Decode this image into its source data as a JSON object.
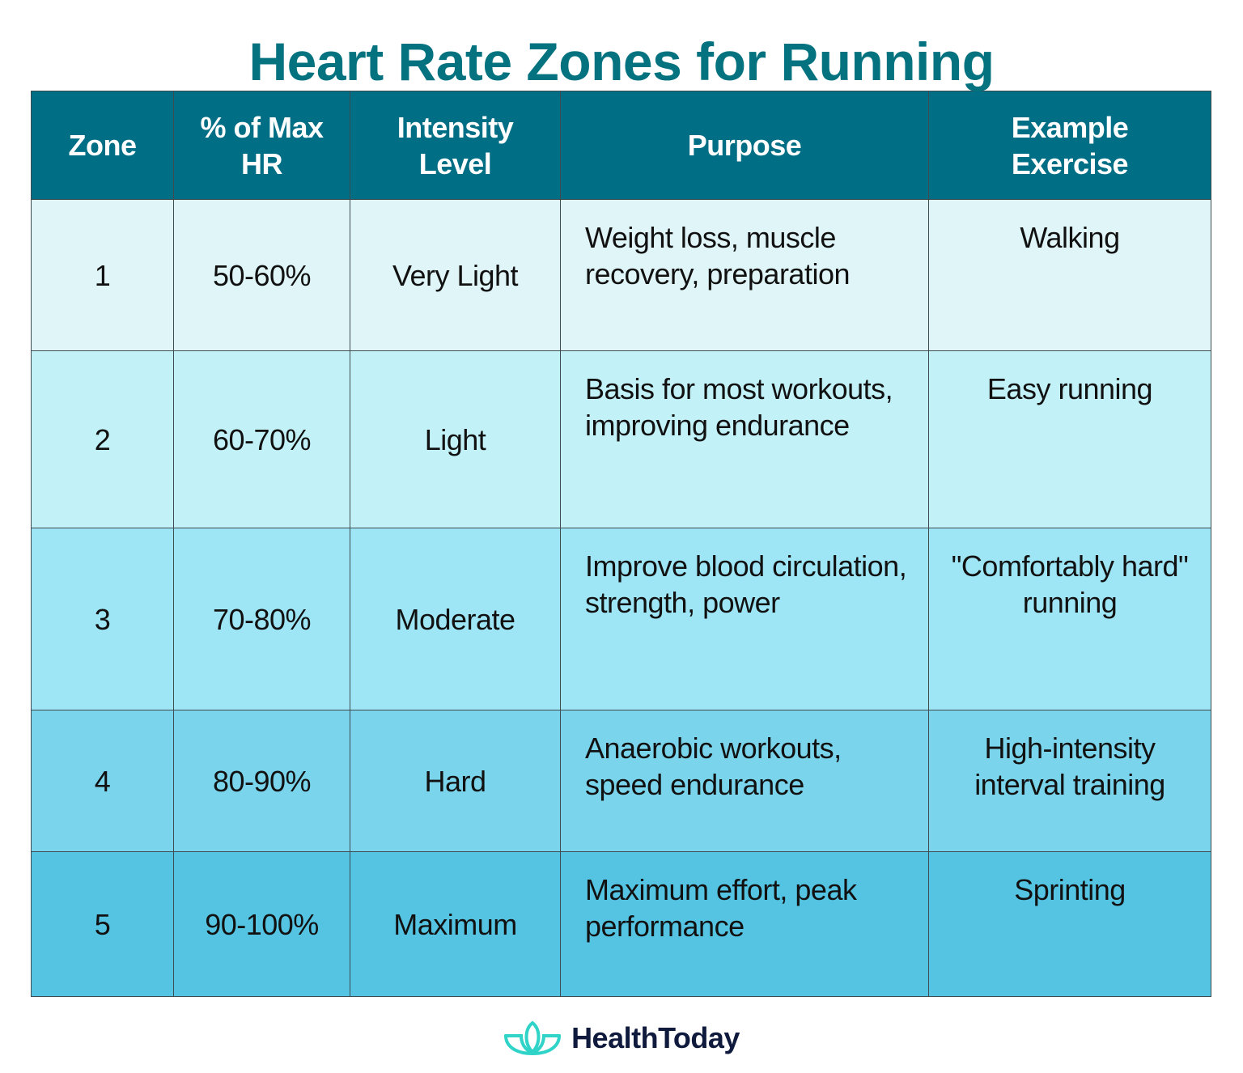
{
  "title": "Heart Rate Zones for Running",
  "headers": [
    "Zone",
    "% of Max HR",
    "Intensity Level",
    "Purpose",
    "Example Exercise"
  ],
  "rows": [
    {
      "zone": "1",
      "pct": "50-60%",
      "intensity": "Very Light",
      "purpose": "Weight loss, muscle recovery, preparation",
      "example": "Walking"
    },
    {
      "zone": "2",
      "pct": "60-70%",
      "intensity": "Light",
      "purpose": "Basis for most workouts, improving endurance",
      "example": "Easy running"
    },
    {
      "zone": "3",
      "pct": "70-80%",
      "intensity": "Moderate",
      "purpose": "Improve blood circulation, strength, power",
      "example": "\"Comfortably hard\" running"
    },
    {
      "zone": "4",
      "pct": "80-90%",
      "intensity": "Hard",
      "purpose": "Anaerobic workouts, speed endurance",
      "example": "High-intensity interval training"
    },
    {
      "zone": "5",
      "pct": "90-100%",
      "intensity": "Maximum",
      "purpose": "Maximum effort, peak performance",
      "example": "Sprinting"
    }
  ],
  "colors": {
    "title": "#04727f",
    "header": "#006e85",
    "rows": [
      "#e0f5f8",
      "#c2f1f8",
      "#9ee6f5",
      "#7ad5ec",
      "#55c4e2"
    ],
    "logo_icon": "#2fd3c8",
    "logo_text": "#0f1a3d"
  },
  "brand": {
    "name": "HealthToday",
    "icon": "lotus-icon"
  }
}
